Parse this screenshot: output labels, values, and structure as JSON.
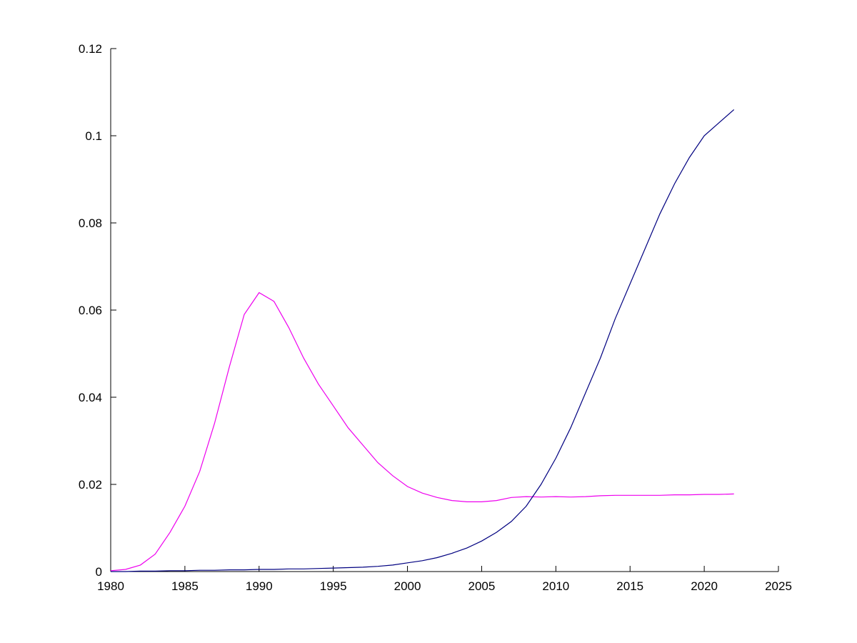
{
  "chart_data": {
    "type": "line",
    "title": "",
    "xlabel": "",
    "ylabel": "",
    "grid": false,
    "legend_position": "none",
    "xlim": [
      1980,
      2025
    ],
    "ylim": [
      0,
      0.12
    ],
    "x_ticks": [
      1980,
      1985,
      1990,
      1995,
      2000,
      2005,
      2010,
      2015,
      2020,
      2025
    ],
    "x_tick_labels": [
      "1980",
      "1985",
      "1990",
      "1995",
      "2000",
      "2005",
      "2010",
      "2015",
      "2020",
      "2025"
    ],
    "y_ticks": [
      0,
      0.02,
      0.04,
      0.06,
      0.08,
      0.1,
      0.12
    ],
    "y_tick_labels": [
      "0",
      "0.02",
      "0.04",
      "0.06",
      "0.08",
      "0.1",
      "0.12"
    ],
    "x": [
      1980,
      1981,
      1982,
      1983,
      1984,
      1985,
      1986,
      1987,
      1988,
      1989,
      1990,
      1991,
      1992,
      1993,
      1994,
      1995,
      1996,
      1997,
      1998,
      1999,
      2000,
      2001,
      2002,
      2003,
      2004,
      2005,
      2006,
      2007,
      2008,
      2009,
      2010,
      2011,
      2012,
      2013,
      2014,
      2015,
      2016,
      2017,
      2018,
      2019,
      2020,
      2021,
      2022
    ],
    "series": [
      {
        "name": "magenta-series",
        "color": "#EE00EE",
        "values": [
          0.0002,
          0.0005,
          0.0015,
          0.004,
          0.009,
          0.015,
          0.023,
          0.034,
          0.047,
          0.059,
          0.064,
          0.062,
          0.056,
          0.049,
          0.043,
          0.038,
          0.033,
          0.029,
          0.025,
          0.022,
          0.0195,
          0.018,
          0.017,
          0.0163,
          0.016,
          0.016,
          0.0163,
          0.017,
          0.0172,
          0.0171,
          0.0172,
          0.0171,
          0.0172,
          0.0174,
          0.0175,
          0.0175,
          0.0175,
          0.0175,
          0.0176,
          0.0176,
          0.0177,
          0.0177,
          0.0178
        ]
      },
      {
        "name": "blue-series",
        "color": "#000080",
        "values": [
          0.0,
          0.0,
          0.0001,
          0.0001,
          0.0002,
          0.0002,
          0.0003,
          0.0003,
          0.0004,
          0.0004,
          0.0005,
          0.0005,
          0.0006,
          0.0006,
          0.0007,
          0.0008,
          0.0009,
          0.001,
          0.0012,
          0.0015,
          0.002,
          0.0025,
          0.0032,
          0.0042,
          0.0054,
          0.007,
          0.009,
          0.0115,
          0.015,
          0.02,
          0.026,
          0.033,
          0.041,
          0.049,
          0.058,
          0.066,
          0.074,
          0.082,
          0.089,
          0.095,
          0.1,
          0.103,
          0.106
        ]
      }
    ]
  }
}
